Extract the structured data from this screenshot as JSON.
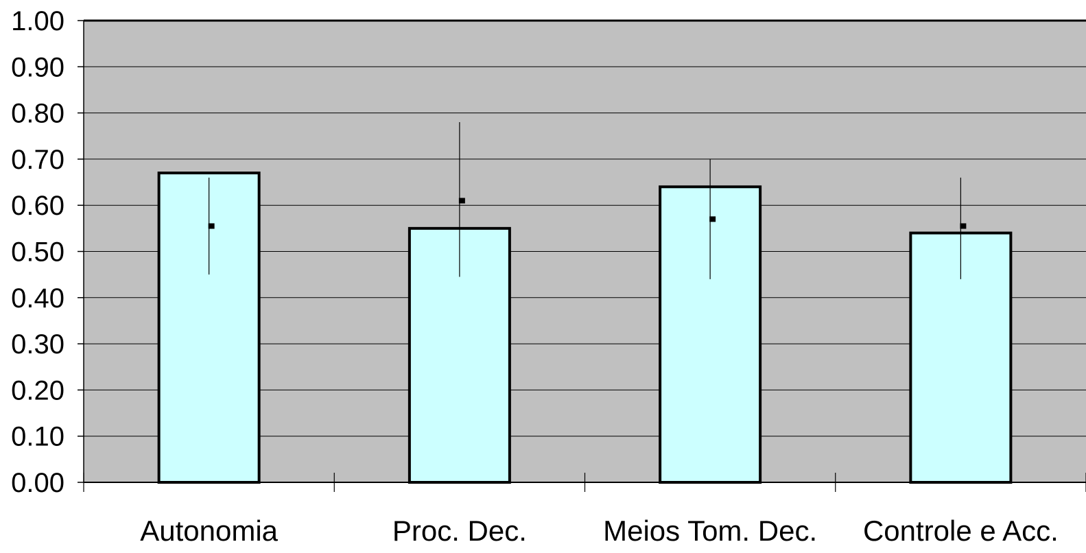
{
  "chart_data": {
    "type": "bar",
    "title": "",
    "xlabel": "",
    "ylabel": "",
    "categories": [
      "Autonomia",
      "Proc. Dec.",
      "Meios Tom. Dec.",
      "Controle e Acc."
    ],
    "ylim": [
      0,
      1.0
    ],
    "yticks": [
      "0.00",
      "0.10",
      "0.20",
      "0.30",
      "0.40",
      "0.50",
      "0.60",
      "0.70",
      "0.80",
      "0.90",
      "1.00"
    ],
    "grid": true,
    "legend": "none",
    "series": [
      {
        "type": "bar",
        "values": [
          0.67,
          0.55,
          0.64,
          0.54
        ],
        "color": "#ccffff"
      },
      {
        "type": "point-with-range",
        "values": [
          0.555,
          0.61,
          0.57,
          0.555
        ],
        "range_low": [
          0.45,
          0.445,
          0.44,
          0.44
        ],
        "range_high": [
          0.66,
          0.78,
          0.7,
          0.66
        ]
      }
    ],
    "colors": {
      "plot_background": "#c0c0c0",
      "bar_fill": "#ccffff",
      "bar_stroke": "#000000",
      "grid": "#000000"
    }
  }
}
